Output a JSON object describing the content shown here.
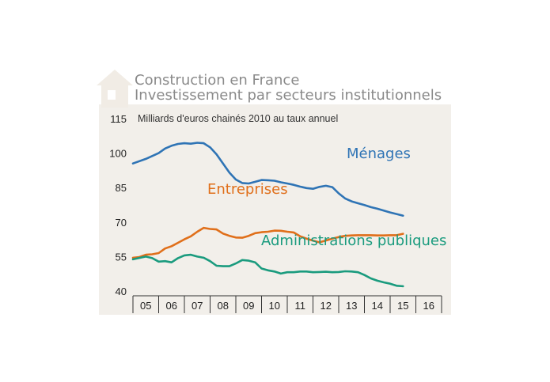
{
  "title": {
    "line1": "Construction en France",
    "line2": "Investissement par secteurs institutionnels"
  },
  "icon": "house-icon",
  "chart_data": {
    "type": "line",
    "subtitle": "Milliards d'euros chainés 2010 au taux annuel",
    "yticks": [
      115,
      100,
      85,
      70,
      55,
      40
    ],
    "xtick_labels": [
      "05",
      "06",
      "07",
      "08",
      "09",
      "10",
      "11",
      "12",
      "13",
      "14",
      "15",
      "16"
    ],
    "xlim": [
      2005,
      2017
    ],
    "ylim": [
      40,
      115
    ],
    "grid": "vertical ticks only",
    "background_color": "#f2efea",
    "series": [
      {
        "name": "Ménages",
        "color": "#2f74b5",
        "x": [
          2005.0,
          2005.5,
          2006.0,
          2006.25,
          2006.5,
          2006.75,
          2007.0,
          2007.25,
          2007.5,
          2007.75,
          2008.0,
          2008.25,
          2008.5,
          2008.75,
          2009.0,
          2009.25,
          2009.5,
          2009.75,
          2010.0,
          2010.25,
          2010.5,
          2010.75,
          2011.0,
          2011.25,
          2011.5,
          2011.75,
          2012.0,
          2012.25,
          2012.5,
          2012.75,
          2013.0,
          2013.25,
          2013.5,
          2013.75,
          2014.0,
          2014.25,
          2014.5,
          2014.75,
          2015.0,
          2015.25,
          2015.5
        ],
        "values": [
          95.5,
          97.5,
          100.0,
          102.0,
          103.2,
          104.0,
          104.3,
          104.1,
          104.5,
          104.3,
          102.5,
          99.5,
          95.5,
          91.5,
          88.5,
          87.0,
          86.8,
          87.5,
          88.3,
          88.2,
          88.0,
          87.3,
          86.8,
          86.2,
          85.4,
          84.8,
          84.5,
          85.3,
          85.8,
          85.2,
          82.5,
          80.3,
          79.0,
          78.2,
          77.4,
          76.5,
          75.8,
          75.0,
          74.2,
          73.5,
          72.8
        ]
      },
      {
        "name": "Entreprises",
        "color": "#e06f1a",
        "x": [
          2005.0,
          2005.25,
          2005.5,
          2005.75,
          2006.0,
          2006.25,
          2006.5,
          2006.75,
          2007.0,
          2007.25,
          2007.5,
          2007.75,
          2008.0,
          2008.25,
          2008.5,
          2008.75,
          2009.0,
          2009.25,
          2009.5,
          2009.75,
          2010.0,
          2010.25,
          2010.5,
          2010.75,
          2011.0,
          2011.25,
          2011.5,
          2011.75,
          2012.0,
          2012.25,
          2012.5,
          2012.75,
          2013.0,
          2013.25,
          2013.5,
          2013.75,
          2014.0,
          2014.25,
          2014.5,
          2014.75,
          2015.0,
          2015.25,
          2015.5
        ],
        "values": [
          54.5,
          54.8,
          55.8,
          56.0,
          56.5,
          58.5,
          59.5,
          61.0,
          62.5,
          63.8,
          65.8,
          67.5,
          67.0,
          66.8,
          65.0,
          64.0,
          63.3,
          63.2,
          64.0,
          65.2,
          65.6,
          65.8,
          66.3,
          66.2,
          65.8,
          65.5,
          63.8,
          62.8,
          61.9,
          61.2,
          62.0,
          62.8,
          63.5,
          64.0,
          64.2,
          64.3,
          64.3,
          64.3,
          64.2,
          64.2,
          64.3,
          64.3,
          64.9
        ]
      },
      {
        "name": "Administrations publiques",
        "color": "#1a9b7e",
        "x": [
          2005.0,
          2005.5,
          2005.75,
          2006.0,
          2006.25,
          2006.5,
          2006.75,
          2007.0,
          2007.25,
          2007.5,
          2007.75,
          2008.0,
          2008.25,
          2008.5,
          2008.75,
          2009.0,
          2009.25,
          2009.5,
          2009.75,
          2010.0,
          2010.25,
          2010.5,
          2010.75,
          2011.0,
          2011.25,
          2011.5,
          2011.75,
          2012.0,
          2012.25,
          2012.5,
          2012.75,
          2013.0,
          2013.25,
          2013.5,
          2013.75,
          2014.0,
          2014.25,
          2014.5,
          2014.75,
          2015.0,
          2015.25,
          2015.5
        ],
        "values": [
          53.8,
          55.0,
          54.3,
          52.8,
          53.0,
          52.5,
          54.3,
          55.5,
          55.8,
          55.0,
          54.5,
          53.0,
          51.0,
          50.8,
          50.8,
          52.0,
          53.5,
          53.2,
          52.5,
          49.8,
          49.0,
          48.5,
          47.6,
          48.2,
          48.2,
          48.5,
          48.5,
          48.2,
          48.3,
          48.4,
          48.2,
          48.3,
          48.6,
          48.5,
          48.2,
          47.0,
          45.5,
          44.5,
          43.8,
          43.2,
          42.3,
          42.1
        ]
      }
    ]
  }
}
